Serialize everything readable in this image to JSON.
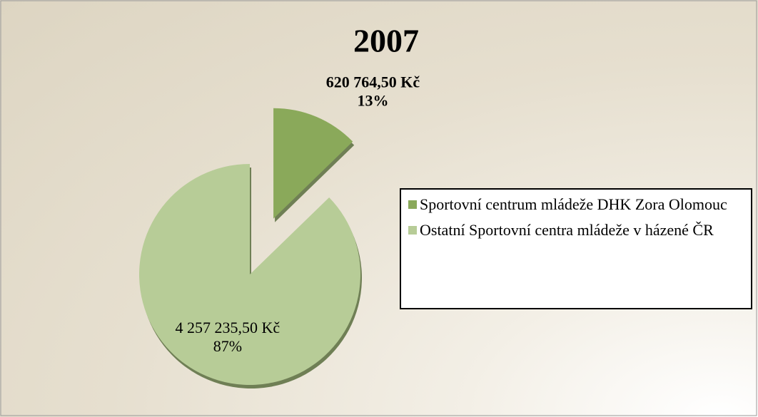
{
  "chart_data": {
    "type": "pie",
    "title": "2007",
    "categories": [
      "Sportovní centrum mládeže DHK Zora Olomouc",
      "Ostatní Sportovní centra mládeže v házené ČR"
    ],
    "values": [
      620764.5,
      4257235.5
    ],
    "value_labels": [
      [
        "620 764,50 Kč",
        "13%"
      ],
      [
        "4 257 235,50  Kč",
        "87%"
      ]
    ],
    "colors": [
      "#8aa95a",
      "#b7cc97"
    ],
    "exploded": [
      true,
      false
    ],
    "legend": "right"
  }
}
